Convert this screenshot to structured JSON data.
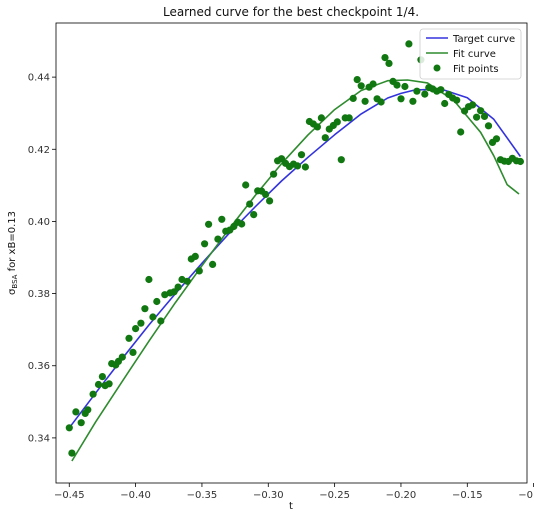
{
  "chart_data": {
    "type": "line",
    "title": "Learned curve for the best checkpoint 1/4.",
    "xlabel": "t",
    "ylabel_main": "σ",
    "ylabel_sub": "BSA",
    "ylabel_rest": " for xB=0.13",
    "xlim": [
      -0.46,
      -0.105
    ],
    "ylim": [
      0.3275,
      0.455
    ],
    "x_ticks": [
      -0.45,
      -0.4,
      -0.35,
      -0.3,
      -0.25,
      -0.2,
      -0.15,
      -0.1
    ],
    "x_tick_labels": [
      "−0.45",
      "−0.40",
      "−0.35",
      "−0.30",
      "−0.25",
      "−0.20",
      "−0.15",
      "−0.10"
    ],
    "y_ticks": [
      0.34,
      0.36,
      0.38,
      0.4,
      0.42,
      0.44
    ],
    "y_tick_labels": [
      "0.34",
      "0.36",
      "0.38",
      "0.40",
      "0.42",
      "0.44"
    ],
    "legend_position": "top-right",
    "series": [
      {
        "name": "Target curve",
        "kind": "line",
        "color": "#3333dd",
        "x": [
          -0.45,
          -0.43,
          -0.41,
          -0.39,
          -0.37,
          -0.35,
          -0.33,
          -0.31,
          -0.29,
          -0.27,
          -0.25,
          -0.23,
          -0.21,
          -0.2,
          -0.19,
          -0.17,
          -0.15,
          -0.13,
          -0.11
        ],
        "y": [
          0.3428,
          0.3525,
          0.362,
          0.3713,
          0.38,
          0.3884,
          0.3965,
          0.404,
          0.4112,
          0.4178,
          0.424,
          0.4298,
          0.4342,
          0.4355,
          0.4364,
          0.4367,
          0.4343,
          0.4283,
          0.418
        ]
      },
      {
        "name": "Fit curve",
        "kind": "line",
        "color": "#2e8b2e",
        "x": [
          -0.448,
          -0.43,
          -0.41,
          -0.39,
          -0.37,
          -0.35,
          -0.33,
          -0.31,
          -0.29,
          -0.27,
          -0.25,
          -0.23,
          -0.21,
          -0.195,
          -0.18,
          -0.16,
          -0.14,
          -0.13,
          -0.12,
          -0.111
        ],
        "y": [
          0.3336,
          0.3445,
          0.3557,
          0.3668,
          0.3775,
          0.3877,
          0.3977,
          0.4071,
          0.416,
          0.424,
          0.431,
          0.4363,
          0.439,
          0.4392,
          0.4384,
          0.4335,
          0.4247,
          0.4182,
          0.4102,
          0.4076
        ]
      },
      {
        "name": "Fit points",
        "kind": "scatter",
        "color": "#117711",
        "x": [
          -0.45,
          -0.448,
          -0.445,
          -0.441,
          -0.438,
          -0.436,
          -0.432,
          -0.428,
          -0.425,
          -0.423,
          -0.42,
          -0.418,
          -0.415,
          -0.413,
          -0.41,
          -0.405,
          -0.402,
          -0.4,
          -0.396,
          -0.393,
          -0.39,
          -0.387,
          -0.384,
          -0.381,
          -0.378,
          -0.374,
          -0.371,
          -0.368,
          -0.365,
          -0.361,
          -0.358,
          -0.355,
          -0.352,
          -0.348,
          -0.345,
          -0.342,
          -0.338,
          -0.335,
          -0.332,
          -0.329,
          -0.326,
          -0.323,
          -0.32,
          -0.317,
          -0.314,
          -0.311,
          -0.308,
          -0.305,
          -0.302,
          -0.299,
          -0.296,
          -0.293,
          -0.29,
          -0.287,
          -0.284,
          -0.281,
          -0.278,
          -0.275,
          -0.272,
          -0.269,
          -0.266,
          -0.263,
          -0.26,
          -0.257,
          -0.254,
          -0.251,
          -0.248,
          -0.245,
          -0.242,
          -0.239,
          -0.236,
          -0.233,
          -0.23,
          -0.227,
          -0.224,
          -0.221,
          -0.218,
          -0.215,
          -0.212,
          -0.209,
          -0.206,
          -0.203,
          -0.2,
          -0.197,
          -0.194,
          -0.191,
          -0.188,
          -0.185,
          -0.182,
          -0.179,
          -0.176,
          -0.173,
          -0.17,
          -0.167,
          -0.164,
          -0.161,
          -0.158,
          -0.155,
          -0.152,
          -0.149,
          -0.146,
          -0.143,
          -0.14,
          -0.137,
          -0.134,
          -0.131,
          -0.128,
          -0.125,
          -0.122,
          -0.119,
          -0.116,
          -0.113,
          -0.11
        ],
        "y": [
          0.3428,
          0.3358,
          0.3472,
          0.3442,
          0.3468,
          0.3478,
          0.3521,
          0.3548,
          0.357,
          0.3545,
          0.355,
          0.3606,
          0.3602,
          0.3612,
          0.3624,
          0.3676,
          0.3637,
          0.3703,
          0.3718,
          0.3758,
          0.3839,
          0.3735,
          0.3778,
          0.3724,
          0.3797,
          0.3802,
          0.3805,
          0.3818,
          0.3839,
          0.3834,
          0.3896,
          0.3903,
          0.3863,
          0.3938,
          0.3992,
          0.3881,
          0.3951,
          0.4006,
          0.3973,
          0.3976,
          0.3986,
          0.3998,
          0.3993,
          0.4101,
          0.4048,
          0.4019,
          0.4085,
          0.4084,
          0.4075,
          0.4057,
          0.4131,
          0.4168,
          0.4174,
          0.4161,
          0.4152,
          0.4159,
          0.4154,
          0.4185,
          0.4151,
          0.4277,
          0.427,
          0.4262,
          0.4287,
          0.4232,
          0.4256,
          0.4266,
          0.4276,
          0.4171,
          0.4287,
          0.4287,
          0.4341,
          0.4393,
          0.4376,
          0.4333,
          0.4372,
          0.4381,
          0.434,
          0.4331,
          0.4454,
          0.4438,
          0.4388,
          0.4378,
          0.434,
          0.4374,
          0.4492,
          0.4333,
          0.4361,
          0.4448,
          0.4353,
          0.4371,
          0.4367,
          0.4361,
          0.4365,
          0.4327,
          0.4352,
          0.4342,
          0.4336,
          0.4248,
          0.4306,
          0.4318,
          0.4323,
          0.4289,
          0.4307,
          0.4291,
          0.4265,
          0.4219,
          0.4229,
          0.4171,
          0.4167,
          0.4166,
          0.4175,
          0.4168,
          0.4166
        ]
      }
    ]
  }
}
